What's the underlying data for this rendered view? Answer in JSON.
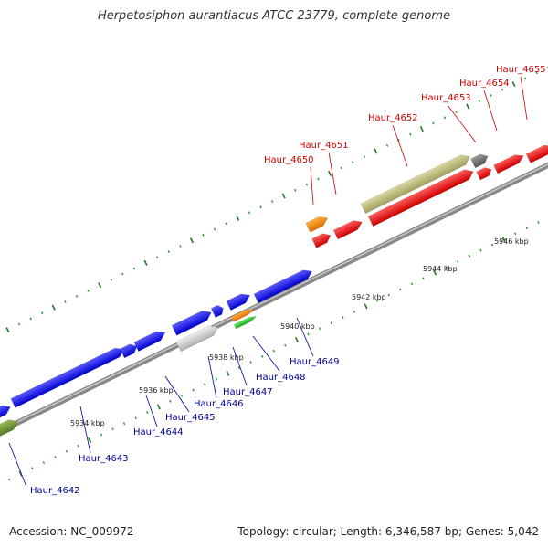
{
  "title": "Herpetosiphon aurantiacus ATCC 23779, complete genome",
  "footer": {
    "accession": "Accession: NC_009972",
    "topology": "Topology: circular; Length: 6,346,587 bp; Genes: 5,042"
  },
  "colors": {
    "backbone": "#999999",
    "tick": "#228822",
    "blue_gene": "#1a1aee",
    "red_gene": "#ee1111",
    "label_top": "#cc0000",
    "label_bottom": "#000099"
  },
  "scale_labels": [
    "5934 kbp",
    "5936 kbp",
    "5938 kbp",
    "5940 kbp",
    "5942 kbp",
    "5944 kbp",
    "5946 kbp"
  ],
  "top_labels": [
    "Haur_4650",
    "Haur_4651",
    "Haur_4652",
    "Haur_4653",
    "Haur_4654",
    "Haur_4655"
  ],
  "bottom_labels": [
    "Haur_4642",
    "Haur_4643",
    "Haur_4644",
    "Haur_4645",
    "Haur_4646",
    "Haur_4647",
    "Haur_4648",
    "Haur_4649"
  ]
}
